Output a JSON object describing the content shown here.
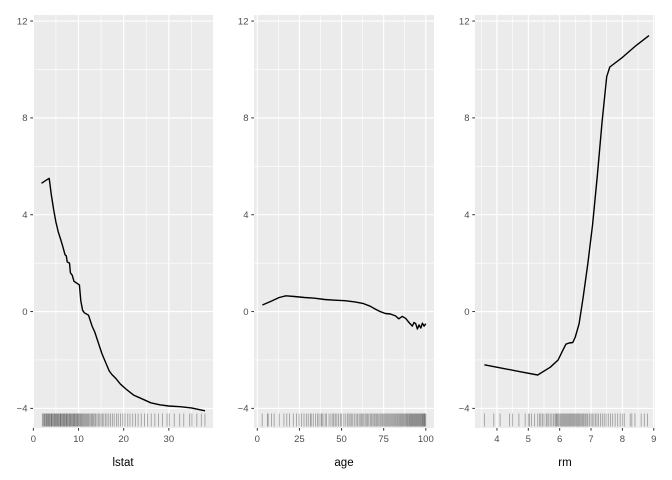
{
  "style": {
    "panel_bg": "#EBEBEB",
    "grid_major": "#FFFFFF",
    "grid_minor": "#FFFFFF",
    "curve_color": "#000000",
    "rug_color": "#000000",
    "rug_opacity": 0.32,
    "tick_label_color": "#4D4D4D",
    "tick_mark_color": "#333333",
    "axis_title_color": "#000000",
    "figure_bg": "#FFFFFF"
  },
  "chart_data": [
    {
      "type": "line",
      "title": "",
      "xlabel": "lstat",
      "ylabel": "",
      "xlim": [
        -0.08,
        39.78
      ],
      "ylim": [
        -4.81,
        12.25
      ],
      "xticks": [
        0,
        10,
        20,
        30
      ],
      "xticks_minor": [
        5,
        15,
        25,
        35
      ],
      "yticks": [
        -4,
        0,
        4,
        8,
        12
      ],
      "yticks_minor": [
        -2,
        2,
        6,
        10
      ],
      "grid": true,
      "legend": false,
      "x": [
        1.8,
        2.8,
        3.5,
        4.0,
        4.5,
        5.0,
        5.5,
        6.0,
        6.5,
        7.0,
        7.3,
        7.5,
        8.0,
        8.2,
        8.6,
        9.0,
        9.4,
        9.8,
        10.2,
        10.5,
        10.9,
        11.3,
        12.2,
        13.0,
        13.6,
        14.4,
        15.2,
        16.0,
        16.8,
        17.4,
        18.2,
        19.3,
        20.5,
        22.2,
        24.0,
        26.0,
        28.0,
        30.0,
        32.5,
        35.0,
        38.0
      ],
      "y": [
        5.3,
        5.42,
        5.5,
        4.8,
        4.2,
        3.7,
        3.3,
        3.0,
        2.7,
        2.35,
        2.3,
        2.05,
        2.0,
        1.6,
        1.5,
        1.25,
        1.2,
        1.15,
        1.1,
        0.45,
        0.05,
        -0.05,
        -0.15,
        -0.6,
        -0.85,
        -1.3,
        -1.75,
        -2.1,
        -2.45,
        -2.6,
        -2.75,
        -3.0,
        -3.2,
        -3.45,
        -3.6,
        -3.77,
        -3.85,
        -3.9,
        -3.93,
        -3.98,
        -4.1
      ],
      "rug_x": [
        2.0,
        2.2,
        2.4,
        2.5,
        2.7,
        2.9,
        3.0,
        3.1,
        3.3,
        3.4,
        3.6,
        3.7,
        3.9,
        4.0,
        4.1,
        4.3,
        4.4,
        4.6,
        4.7,
        4.9,
        5.0,
        5.1,
        5.3,
        5.4,
        5.6,
        5.7,
        5.9,
        6.0,
        6.1,
        6.3,
        6.4,
        6.6,
        6.7,
        6.9,
        7.0,
        7.2,
        7.3,
        7.4,
        7.6,
        7.7,
        7.9,
        8.0,
        8.2,
        8.3,
        8.5,
        8.6,
        8.8,
        8.9,
        9.1,
        9.2,
        9.4,
        9.5,
        9.7,
        9.8,
        10.0,
        10.1,
        10.3,
        10.5,
        10.6,
        10.8,
        11.0,
        11.2,
        11.4,
        11.6,
        11.8,
        12.0,
        12.2,
        12.4,
        12.7,
        12.9,
        13.1,
        13.3,
        13.6,
        13.8,
        14.1,
        14.4,
        14.7,
        15.0,
        15.3,
        15.6,
        16.0,
        16.3,
        16.7,
        17.1,
        17.5,
        17.9,
        18.4,
        18.8,
        19.3,
        19.8,
        20.3,
        20.9,
        21.4,
        22.0,
        22.6,
        23.2,
        23.9,
        24.6,
        25.3,
        26.1,
        26.9,
        27.7,
        28.6,
        29.6,
        30.1,
        31.2,
        32.4,
        33.3,
        34.6,
        35.1,
        36.2,
        37.2,
        38.0
      ]
    },
    {
      "type": "line",
      "title": "",
      "xlabel": "age",
      "ylabel": "",
      "xlim": [
        -1.96,
        104.86
      ],
      "ylim": [
        -4.81,
        12.25
      ],
      "xticks": [
        0,
        25,
        50,
        75,
        100
      ],
      "xticks_minor": [
        12.5,
        37.5,
        62.5,
        87.5
      ],
      "yticks": [
        -4,
        0,
        4,
        8,
        12
      ],
      "yticks_minor": [
        -2,
        2,
        6,
        10
      ],
      "grid": true,
      "legend": false,
      "x": [
        3,
        8,
        13,
        17,
        22,
        28,
        34,
        40,
        46,
        52,
        58,
        63,
        67,
        70,
        73,
        76,
        79,
        82,
        84,
        86,
        88,
        90,
        92,
        93,
        94,
        95,
        96,
        97,
        98,
        99,
        100
      ],
      "y": [
        0.27,
        0.42,
        0.58,
        0.65,
        0.62,
        0.58,
        0.55,
        0.5,
        0.47,
        0.45,
        0.4,
        0.33,
        0.22,
        0.1,
        0.0,
        -0.08,
        -0.1,
        -0.18,
        -0.3,
        -0.2,
        -0.28,
        -0.45,
        -0.6,
        -0.45,
        -0.5,
        -0.72,
        -0.55,
        -0.68,
        -0.48,
        -0.6,
        -0.5
      ],
      "rug_x": [
        2.9,
        6,
        6.5,
        8.4,
        10,
        13,
        15.8,
        17.5,
        19.1,
        21.4,
        23.3,
        24.8,
        26.3,
        27.7,
        29.1,
        30.2,
        31.5,
        32,
        33.2,
        34.5,
        35.7,
        36.6,
        37.8,
        38.3,
        39,
        40.3,
        41.1,
        42.6,
        43.7,
        44.8,
        45.4,
        46.3,
        47.2,
        48.2,
        49.3,
        50,
        51.4,
        52.5,
        53.6,
        54.4,
        55.1,
        56,
        56.7,
        57.8,
        58.7,
        59.5,
        60.4,
        61.1,
        61.8,
        62.5,
        63.2,
        64,
        64.7,
        65.4,
        66.1,
        67,
        67.6,
        68.2,
        69.1,
        69.7,
        70.4,
        71,
        71.6,
        72.3,
        73,
        73.6,
        74.3,
        74.9,
        75.5,
        76.1,
        76.7,
        77.3,
        77.9,
        78.5,
        79.1,
        79.7,
        80.3,
        80.8,
        81.4,
        82,
        82.5,
        83.1,
        83.6,
        84.2,
        84.7,
        85.2,
        85.7,
        86.2,
        86.7,
        87.2,
        87.7,
        88.2,
        88.6,
        89.1,
        89.5,
        90,
        90.4,
        90.8,
        91.2,
        91.6,
        92,
        92.4,
        92.8,
        93.2,
        93.6,
        94,
        94.4,
        94.8,
        95.2,
        95.6,
        96,
        96.4,
        96.8,
        97.2,
        97.6,
        98,
        98.3,
        98.7,
        99,
        99.3,
        99.6,
        100
      ]
    },
    {
      "type": "line",
      "title": "",
      "xlabel": "rm",
      "ylabel": "",
      "xlim": [
        3.3,
        9.04
      ],
      "ylim": [
        -4.81,
        12.25
      ],
      "xticks": [
        4,
        5,
        6,
        7,
        8,
        9
      ],
      "xticks_minor": [
        3.5,
        4.5,
        5.5,
        6.5,
        7.5,
        8.5
      ],
      "yticks": [
        -4,
        0,
        4,
        8,
        12
      ],
      "yticks_minor": [
        -2,
        2,
        6,
        10
      ],
      "grid": true,
      "legend": false,
      "x": [
        3.6,
        4.2,
        4.8,
        5.3,
        5.7,
        5.95,
        6.1,
        6.2,
        6.3,
        6.42,
        6.5,
        6.62,
        6.75,
        6.9,
        7.05,
        7.2,
        7.35,
        7.5,
        7.6,
        8.0,
        8.4,
        8.85
      ],
      "y": [
        -2.2,
        -2.35,
        -2.5,
        -2.62,
        -2.3,
        -2.0,
        -1.6,
        -1.35,
        -1.3,
        -1.28,
        -1.05,
        -0.5,
        0.6,
        2.0,
        3.6,
        5.6,
        7.8,
        9.7,
        10.1,
        10.5,
        10.95,
        11.4
      ],
      "rug_x": [
        3.6,
        3.9,
        4.1,
        4.4,
        4.5,
        4.7,
        4.9,
        5.0,
        5.04,
        5.1,
        5.2,
        5.3,
        5.36,
        5.4,
        5.45,
        5.5,
        5.57,
        5.6,
        5.65,
        5.7,
        5.75,
        5.8,
        5.85,
        5.88,
        5.9,
        5.93,
        5.96,
        6.0,
        6.03,
        6.06,
        6.09,
        6.12,
        6.15,
        6.18,
        6.21,
        6.24,
        6.27,
        6.3,
        6.33,
        6.36,
        6.39,
        6.42,
        6.45,
        6.48,
        6.51,
        6.54,
        6.57,
        6.6,
        6.63,
        6.66,
        6.7,
        6.73,
        6.76,
        6.8,
        6.83,
        6.87,
        6.9,
        6.95,
        7.0,
        7.04,
        7.09,
        7.14,
        7.19,
        7.24,
        7.3,
        7.36,
        7.42,
        7.48,
        7.55,
        7.62,
        7.69,
        7.77,
        7.85,
        7.93,
        8.0,
        8.06,
        8.25,
        8.3,
        8.4,
        8.6,
        8.7,
        8.8
      ]
    }
  ]
}
